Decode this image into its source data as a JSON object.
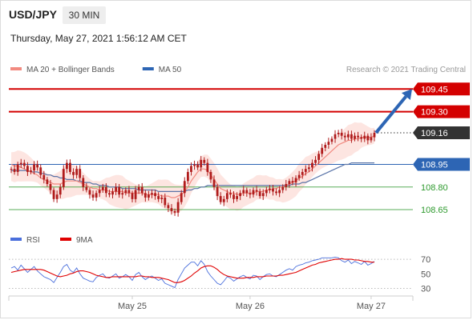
{
  "header": {
    "symbol": "USD/JPY",
    "interval": "30 MIN",
    "timestamp": "Thursday, May 27, 2021 1:56:12 AM CET"
  },
  "credit": "Research © 2021 Trading Central",
  "colors": {
    "resistance": "#d40000",
    "current": "#333333",
    "pivot": "#2d65b4",
    "support": "#2e9a2e",
    "arrow": "#2d65b4",
    "bollinger_fill": "#fde0dc",
    "ma20": "#f28a80",
    "ma50": "#5a74a8",
    "candle": "#b01c1c",
    "rsi": "#4a6fdc",
    "ma9": "#e00000"
  },
  "chart_data": [
    {
      "type": "candlestick",
      "legend": [
        {
          "name": "MA 20 + Bollinger Bands",
          "color": "#f28a80"
        },
        {
          "name": "MA 50",
          "color": "#2d65b4"
        }
      ],
      "x_ticks": [
        "May 25",
        "May 26",
        "May 27"
      ],
      "levels": [
        {
          "label": "109.45",
          "value": 109.45,
          "kind": "resistance"
        },
        {
          "label": "109.30",
          "value": 109.3,
          "kind": "resistance"
        },
        {
          "label": "109.16",
          "value": 109.16,
          "kind": "current"
        },
        {
          "label": "108.95",
          "value": 108.95,
          "kind": "pivot"
        },
        {
          "label": "108.80",
          "value": 108.8,
          "kind": "support"
        },
        {
          "label": "108.65",
          "value": 108.65,
          "kind": "support"
        }
      ],
      "ylim": [
        108.56,
        109.51
      ],
      "close": [
        108.92,
        108.9,
        108.95,
        108.96,
        108.94,
        108.9,
        108.91,
        108.95,
        108.93,
        108.88,
        108.85,
        108.82,
        108.78,
        108.72,
        108.75,
        108.8,
        108.92,
        108.96,
        108.9,
        108.88,
        108.92,
        108.86,
        108.8,
        108.78,
        108.75,
        108.73,
        108.76,
        108.78,
        108.8,
        108.76,
        108.75,
        108.77,
        108.8,
        108.75,
        108.76,
        108.78,
        108.76,
        108.72,
        108.78,
        108.8,
        108.76,
        108.73,
        108.75,
        108.76,
        108.74,
        108.72,
        108.73,
        108.68,
        108.66,
        108.64,
        108.63,
        108.7,
        108.76,
        108.84,
        108.9,
        108.94,
        108.95,
        108.93,
        108.98,
        108.96,
        108.9,
        108.85,
        108.8,
        108.74,
        108.7,
        108.72,
        108.76,
        108.75,
        108.72,
        108.74,
        108.76,
        108.78,
        108.76,
        108.75,
        108.78,
        108.77,
        108.74,
        108.76,
        108.78,
        108.79,
        108.77,
        108.76,
        108.78,
        108.8,
        108.82,
        108.84,
        108.83,
        108.86,
        108.88,
        108.9,
        108.92,
        108.93,
        108.96,
        108.98,
        109.02,
        109.06,
        109.08,
        109.1,
        109.12,
        109.15,
        109.16,
        109.14,
        109.13,
        109.15,
        109.12,
        109.14,
        109.13,
        109.12,
        109.14,
        109.11,
        109.13,
        109.16
      ],
      "ma20": [
        108.95,
        108.94,
        108.94,
        108.93,
        108.92,
        108.91,
        108.9,
        108.89,
        108.88,
        108.86,
        108.85,
        108.84,
        108.83,
        108.82,
        108.82,
        108.82,
        108.83,
        108.84,
        108.84,
        108.84,
        108.84,
        108.83,
        108.82,
        108.81,
        108.8,
        108.79,
        108.79,
        108.78,
        108.78,
        108.78,
        108.77,
        108.77,
        108.77,
        108.77,
        108.77,
        108.76,
        108.76,
        108.76,
        108.76,
        108.76,
        108.76,
        108.75,
        108.75,
        108.75,
        108.75,
        108.75,
        108.74,
        108.74,
        108.74,
        108.73,
        108.73,
        108.74,
        108.75,
        108.77,
        108.8,
        108.84,
        108.87,
        108.9,
        108.92,
        108.92,
        108.91,
        108.88,
        108.85,
        108.82,
        108.79,
        108.78,
        108.77,
        108.76,
        108.76,
        108.75,
        108.75,
        108.76,
        108.76,
        108.76,
        108.76,
        108.77,
        108.77,
        108.77,
        108.78,
        108.78,
        108.79,
        108.79,
        108.8,
        108.8,
        108.81,
        108.82,
        108.83,
        108.84,
        108.86,
        108.87,
        108.89,
        108.9,
        108.92,
        108.94,
        108.96,
        108.98,
        109.0,
        109.02,
        109.04,
        109.06,
        109.08,
        109.09,
        109.1,
        109.11,
        109.11,
        109.12,
        109.12,
        109.13,
        109.13,
        109.13,
        109.13,
        109.14
      ],
      "ma50": [
        108.91,
        108.91,
        108.91,
        108.91,
        108.91,
        108.91,
        108.9,
        108.9,
        108.9,
        108.89,
        108.89,
        108.88,
        108.88,
        108.87,
        108.87,
        108.86,
        108.86,
        108.85,
        108.85,
        108.85,
        108.84,
        108.84,
        108.83,
        108.83,
        108.83,
        108.82,
        108.82,
        108.81,
        108.81,
        108.81,
        108.8,
        108.8,
        108.8,
        108.8,
        108.79,
        108.79,
        108.79,
        108.79,
        108.79,
        108.78,
        108.78,
        108.78,
        108.78,
        108.78,
        108.78,
        108.77,
        108.77,
        108.77,
        108.77,
        108.77,
        108.77,
        108.77,
        108.77,
        108.77,
        108.78,
        108.78,
        108.79,
        108.79,
        108.8,
        108.8,
        108.81,
        108.81,
        108.81,
        108.81,
        108.81,
        108.81,
        108.81,
        108.81,
        108.81,
        108.81,
        108.81,
        108.81,
        108.81,
        108.81,
        108.81,
        108.81,
        108.81,
        108.81,
        108.81,
        108.81,
        108.81,
        108.81,
        108.81,
        108.81,
        108.81,
        108.81,
        108.82,
        108.82,
        108.82,
        108.83,
        108.83,
        108.84,
        108.85,
        108.86,
        108.87,
        108.88,
        108.89,
        108.9,
        108.91,
        108.92,
        108.93,
        108.94,
        108.95,
        108.95,
        108.96,
        108.96,
        108.96,
        108.96,
        108.96,
        108.96,
        108.96,
        108.96
      ],
      "bollinger_width": 0.08
    },
    {
      "type": "line",
      "legend": [
        {
          "name": "RSI",
          "color": "#4a6fdc"
        },
        {
          "name": "9MA",
          "color": "#e00000"
        }
      ],
      "y_ticks": [
        70,
        50,
        30
      ],
      "ylim": [
        25,
        80
      ],
      "series": [
        {
          "name": "RSI",
          "values": [
            58,
            60,
            55,
            62,
            57,
            52,
            56,
            60,
            54,
            50,
            46,
            44,
            42,
            38,
            45,
            52,
            60,
            63,
            55,
            52,
            58,
            50,
            44,
            42,
            40,
            39,
            45,
            48,
            50,
            45,
            44,
            47,
            50,
            44,
            46,
            49,
            46,
            41,
            49,
            52,
            46,
            42,
            45,
            47,
            44,
            41,
            43,
            37,
            35,
            33,
            31,
            42,
            50,
            58,
            62,
            66,
            66,
            61,
            68,
            63,
            53,
            47,
            42,
            37,
            35,
            40,
            46,
            44,
            40,
            43,
            46,
            48,
            45,
            43,
            48,
            47,
            42,
            46,
            49,
            50,
            47,
            46,
            49,
            52,
            55,
            57,
            55,
            60,
            62,
            63,
            65,
            66,
            68,
            69,
            70,
            72,
            72,
            72,
            72,
            73,
            72,
            68,
            66,
            69,
            64,
            67,
            65,
            63,
            67,
            62,
            64,
            67
          ]
        },
        {
          "name": "9MA",
          "values": [
            52,
            53,
            54,
            55,
            56,
            56,
            56,
            56,
            56,
            56,
            55,
            53,
            51,
            49,
            47,
            46,
            47,
            48,
            50,
            51,
            53,
            54,
            54,
            53,
            52,
            50,
            48,
            47,
            46,
            45,
            45,
            46,
            46,
            46,
            46,
            46,
            46,
            46,
            46,
            47,
            47,
            46,
            46,
            45,
            45,
            45,
            44,
            43,
            42,
            40,
            38,
            38,
            39,
            41,
            44,
            47,
            51,
            54,
            58,
            60,
            61,
            61,
            59,
            56,
            52,
            49,
            47,
            46,
            45,
            44,
            44,
            44,
            45,
            45,
            45,
            46,
            46,
            46,
            47,
            47,
            47,
            47,
            48,
            48,
            49,
            50,
            51,
            52,
            54,
            56,
            58,
            60,
            62,
            63,
            65,
            66,
            67,
            68,
            69,
            70,
            70,
            71,
            70,
            70,
            70,
            69,
            69,
            68,
            67,
            67,
            66,
            66
          ]
        }
      ]
    }
  ]
}
